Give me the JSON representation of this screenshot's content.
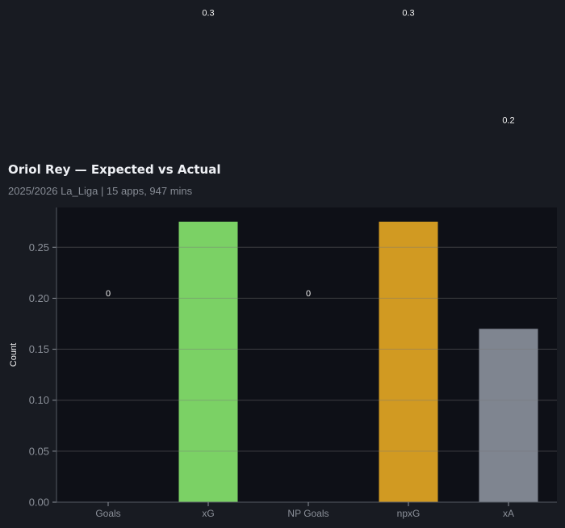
{
  "title": "Oriol Rey — Expected vs Actual",
  "subtitle": "2025/2026 La_Liga | 15 apps, 947 mins",
  "chart_data": {
    "type": "bar",
    "categories": [
      "Goals",
      "xG",
      "NP Goals",
      "npxG",
      "xA"
    ],
    "values": [
      0,
      0.275,
      0,
      0.275,
      0.17
    ],
    "data_labels": [
      "0",
      "0.3",
      "0",
      "0.3",
      "0.2"
    ],
    "colors": [
      "#7bd165",
      "#7bd165",
      "#d19a22",
      "#d19a22",
      "#7f8590"
    ],
    "ylabel": "Count",
    "xlabel": "",
    "ylim": [
      0,
      0.289
    ],
    "yticks": [
      0,
      0.05,
      0.1,
      0.15,
      0.2,
      0.25
    ],
    "ytick_labels": [
      "0.00",
      "0.05",
      "0.10",
      "0.15",
      "0.20",
      "0.25"
    ],
    "grid": "horizontal",
    "plot_background": "#0e1017",
    "page_background": "#181b22"
  }
}
